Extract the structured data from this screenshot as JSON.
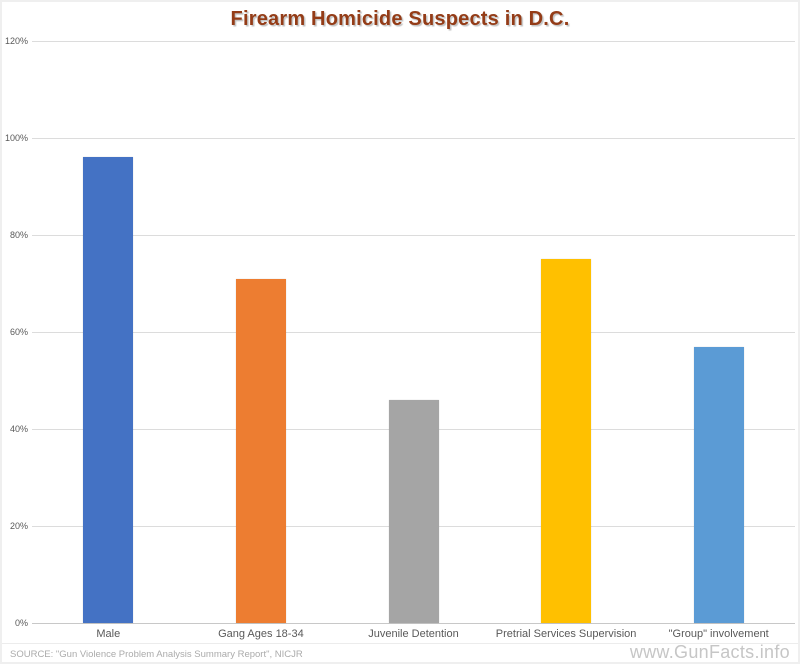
{
  "page": {
    "source": "SOURCE: \"Gun Violence Problem Analysis Summary Report\", NICJR",
    "watermark": "www.GunFacts.info"
  },
  "chart_data": {
    "type": "bar",
    "title": "Firearm Homicide Suspects in D.C.",
    "categories": [
      "Male",
      "Gang Ages 18-34",
      "Juvenile Detention",
      "Pretrial Services Supervision",
      "\"Group\" involvement"
    ],
    "values": [
      96,
      71,
      46,
      75,
      57
    ],
    "value_unit": "%",
    "bar_colors": [
      "#4472C4",
      "#ED7D31",
      "#A5A5A5",
      "#FFC000",
      "#5B9BD5"
    ],
    "ylim": [
      0,
      120
    ],
    "ytick_step": 20,
    "ytick_labels": [
      "0%",
      "20%",
      "40%",
      "60%",
      "80%",
      "100%",
      "120%"
    ],
    "xlabel": "",
    "ylabel": "",
    "grid": true,
    "legend": "none",
    "colors": {
      "title": "#943c17",
      "gridline": "#dcdcdc",
      "axis_line": "#c8c8c8",
      "tick_label": "#595959",
      "source_text": "#ababab",
      "watermark_text": "#c6c6c6",
      "background": "#ffffff"
    }
  }
}
